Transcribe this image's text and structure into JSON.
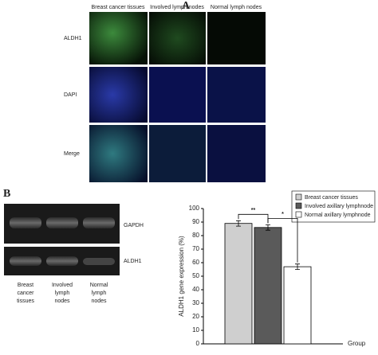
{
  "panel_a": {
    "label": "A",
    "columns": [
      "Breast cancer tissues",
      "Involved lymph nodes",
      "Normal lymph nodes"
    ],
    "rows": [
      "ALDH1",
      "DAPI",
      "Merge"
    ]
  },
  "panel_b": {
    "label": "B",
    "bands": [
      "GAPDH",
      "ALDH1"
    ],
    "lanes": [
      "Breast\ncancer\ntissues",
      "Involved\nlymph\nnodes",
      "Normal\nlymph\nnodes"
    ]
  },
  "chart_data": {
    "type": "bar",
    "y_label": "ALDH1 gene expression (%)",
    "x_label": "Group",
    "categories": [
      null
    ],
    "series": [
      {
        "name": "Breast cancer tissues",
        "color": "#cfcfcf",
        "values": [
          89
        ],
        "errors": [
          2
        ]
      },
      {
        "name": "Involved axillary lymphnode",
        "color": "#5a5a5a",
        "values": [
          86
        ],
        "errors": [
          2
        ]
      },
      {
        "name": "Normal axillary lymphnode",
        "color": "#ffffff",
        "values": [
          57
        ],
        "errors": [
          2
        ]
      }
    ],
    "annotations": [
      "**",
      "*"
    ],
    "ylim": [
      0,
      100
    ],
    "yticks": [
      0,
      10,
      20,
      30,
      40,
      50,
      60,
      70,
      80,
      90,
      100
    ],
    "legend": "top-right"
  }
}
